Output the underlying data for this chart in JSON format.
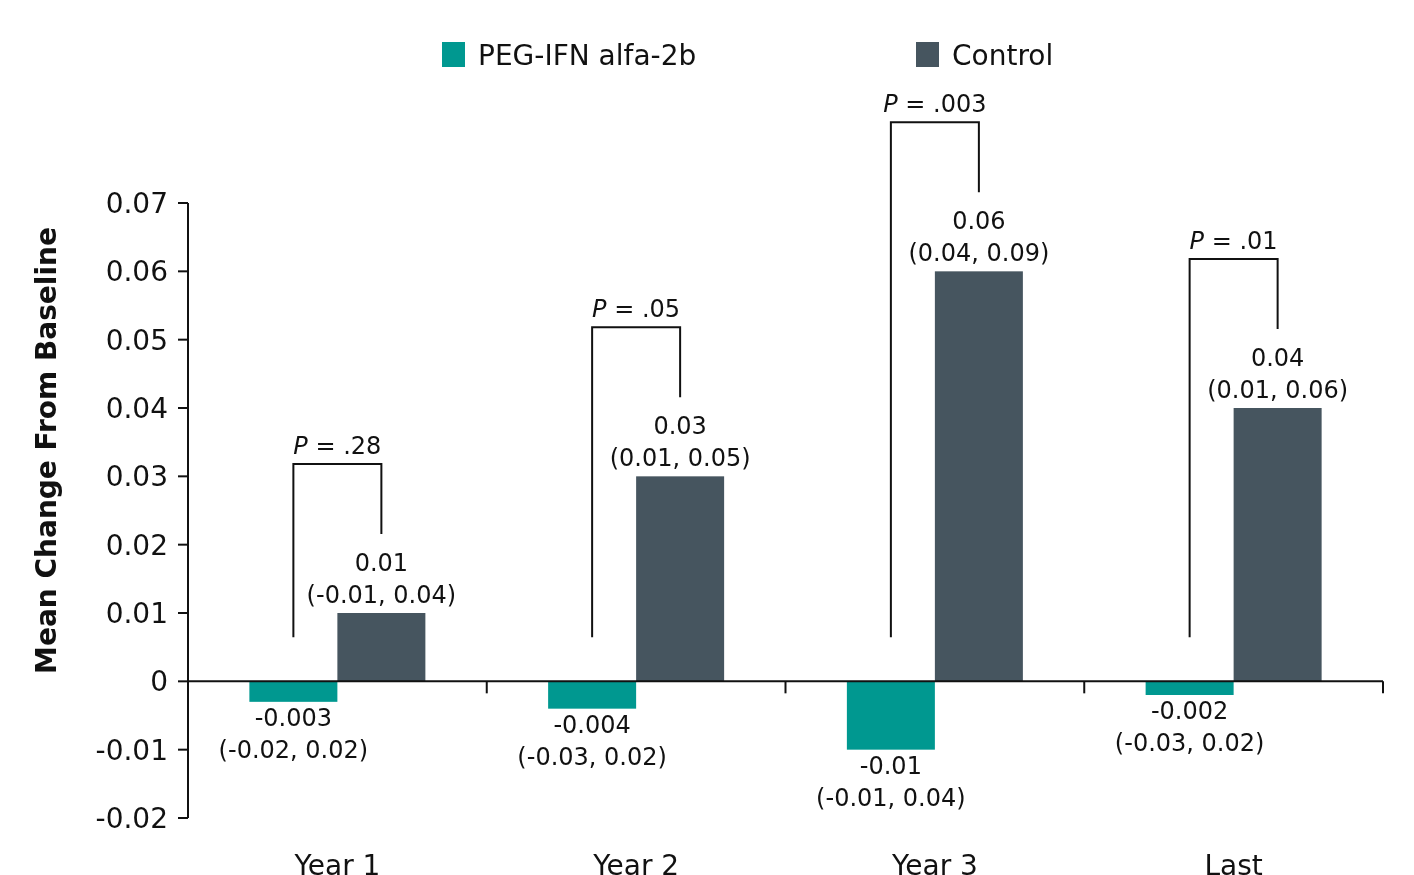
{
  "chart_data": {
    "type": "bar",
    "ylabel": "Mean Change From Baseline",
    "categories": [
      "Year 1",
      "Year 2",
      "Year 3",
      "Last"
    ],
    "series": [
      {
        "name": "PEG-IFN alfa-2b",
        "color": "#009890",
        "values": [
          -0.003,
          -0.004,
          -0.01,
          -0.002
        ],
        "value_labels": [
          "-0.003\n(-0.02, 0.02)",
          "-0.004\n(-0.03, 0.02)",
          "-0.01\n(-0.01, 0.04)",
          "-0.002\n(-0.03, 0.02)"
        ]
      },
      {
        "name": "Control",
        "color": "#46555f",
        "values": [
          0.01,
          0.03,
          0.06,
          0.04
        ],
        "value_labels": [
          "0.01\n(-0.01, 0.04)",
          "0.03\n(0.01, 0.05)",
          "0.06\n(0.04, 0.09)",
          "0.04\n(0.01, 0.06)"
        ]
      }
    ],
    "ylim": [
      -0.02,
      0.07
    ],
    "yticks": [
      -0.02,
      -0.01,
      0,
      0.01,
      0.02,
      0.03,
      0.04,
      0.05,
      0.06,
      0.07
    ],
    "annotations": [
      "P = .28",
      "P = .05",
      "P = .003",
      "P = .01"
    ],
    "legend": "top"
  }
}
